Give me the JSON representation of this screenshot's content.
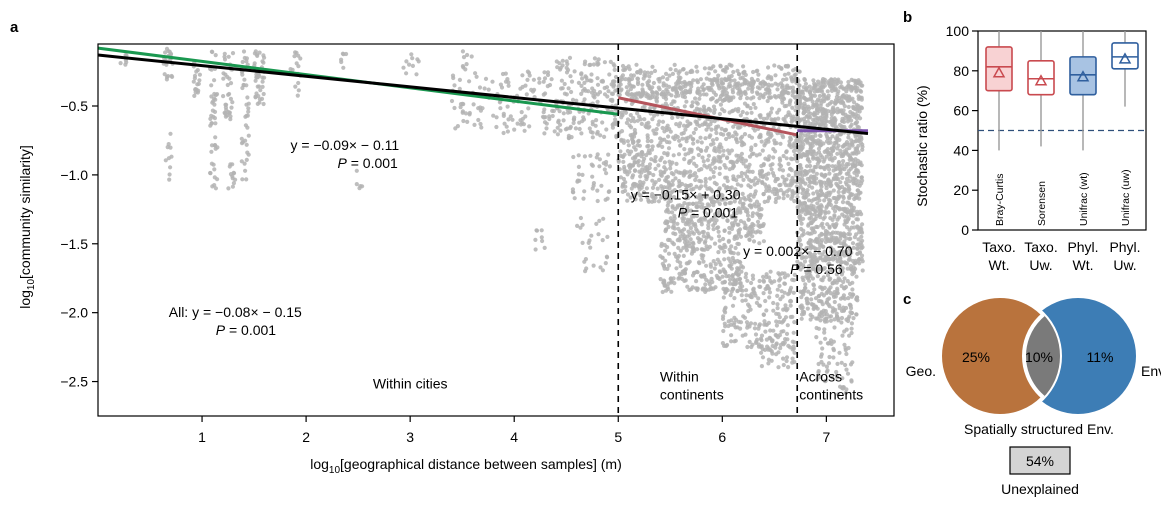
{
  "panels": {
    "a": "a",
    "b": "b",
    "c": "c"
  },
  "chart_data": [
    {
      "panel": "a",
      "type": "scatter",
      "xlabel": "log10[geographical distance between samples] (m)",
      "ylabel": "log10[community similarity]",
      "xlim": [
        0,
        7.65
      ],
      "ylim": [
        -2.75,
        -0.05
      ],
      "xticks": [
        1,
        2,
        3,
        4,
        5,
        6,
        7
      ],
      "yticks": [
        -0.5,
        -1.0,
        -1.5,
        -2.0,
        -2.5
      ],
      "ytick_labels": [
        "−0.5",
        "−1.0",
        "−1.5",
        "−2.0",
        "−2.5"
      ],
      "grid": false,
      "point_color": "#b3b3b3",
      "dividers": [
        5.0,
        6.72
      ],
      "regions": [
        {
          "text": "Within cities",
          "x": 3.0,
          "y": -2.55
        },
        {
          "text": "Within\ncontinents",
          "x": 5.4,
          "y": -2.5
        },
        {
          "text": "Across\ncontinents",
          "x": 6.74,
          "y": -2.5
        }
      ],
      "lines": [
        {
          "x": [
            0,
            5.0
          ],
          "y": [
            -0.08,
            -0.56
          ],
          "color": "#1a9850"
        },
        {
          "x": [
            5.0,
            6.72
          ],
          "y": [
            -0.44,
            -0.71
          ],
          "color": "#b5545c"
        },
        {
          "x": [
            6.72,
            7.4
          ],
          "y": [
            -0.68,
            -0.68
          ],
          "color": "#7b52ae"
        },
        {
          "x": [
            0,
            7.4
          ],
          "y": [
            -0.13,
            -0.7
          ],
          "color": "#000000"
        }
      ],
      "annotations": [
        {
          "lines": [
            "y = −0.09× − 0.11",
            "P = 0.001"
          ],
          "x": 1.85,
          "y": -0.82
        },
        {
          "lines": [
            "y = −0.15× + 0.30",
            "P = 0.001"
          ],
          "x": 5.12,
          "y": -1.18
        },
        {
          "lines": [
            "y = 0.002× − 0.70",
            "P = 0.56"
          ],
          "x": 6.2,
          "y": -1.59
        },
        {
          "lines": [
            "All: y = −0.08× − 0.15",
            "P = 0.001"
          ],
          "x": 0.68,
          "y": -2.03
        }
      ],
      "clusters": [
        {
          "x0": 0.2,
          "x1": 0.3,
          "y0": -0.1,
          "y1": -0.2,
          "n": 6
        },
        {
          "x0": 0.62,
          "x1": 0.72,
          "y0": -0.08,
          "y1": -0.32,
          "n": 25
        },
        {
          "x0": 0.65,
          "x1": 0.72,
          "y0": -0.7,
          "y1": -1.05,
          "n": 10
        },
        {
          "x0": 0.92,
          "x1": 0.98,
          "y0": -0.1,
          "y1": -0.45,
          "n": 18
        },
        {
          "x0": 1.07,
          "x1": 1.15,
          "y0": -0.1,
          "y1": -1.1,
          "n": 45
        },
        {
          "x0": 1.2,
          "x1": 1.3,
          "y0": -0.1,
          "y1": -0.6,
          "n": 35
        },
        {
          "x0": 1.25,
          "x1": 1.32,
          "y0": -0.9,
          "y1": -1.1,
          "n": 12
        },
        {
          "x0": 1.38,
          "x1": 1.45,
          "y0": -0.1,
          "y1": -1.05,
          "n": 40
        },
        {
          "x0": 1.5,
          "x1": 1.6,
          "y0": -0.1,
          "y1": -0.5,
          "n": 40
        },
        {
          "x0": 1.85,
          "x1": 1.95,
          "y0": -0.1,
          "y1": -0.45,
          "n": 15
        },
        {
          "x0": 2.3,
          "x1": 2.4,
          "y0": -0.12,
          "y1": -0.25,
          "n": 6
        },
        {
          "x0": 2.48,
          "x1": 2.58,
          "y0": -0.95,
          "y1": -1.1,
          "n": 5
        },
        {
          "x0": 2.9,
          "x1": 3.1,
          "y0": -0.12,
          "y1": -0.3,
          "n": 10
        },
        {
          "x0": 3.4,
          "x1": 4.4,
          "y0": -0.25,
          "y1": -0.7,
          "n": 130
        },
        {
          "x0": 3.5,
          "x1": 3.6,
          "y0": -0.1,
          "y1": -0.25,
          "n": 8
        },
        {
          "x0": 4.4,
          "x1": 5.0,
          "y0": -0.15,
          "y1": -0.75,
          "n": 180
        },
        {
          "x0": 4.55,
          "x1": 4.95,
          "y0": -0.85,
          "y1": -1.2,
          "n": 40
        },
        {
          "x0": 4.2,
          "x1": 4.3,
          "y0": -1.4,
          "y1": -1.55,
          "n": 8
        },
        {
          "x0": 4.6,
          "x1": 4.9,
          "y0": -1.3,
          "y1": -1.7,
          "n": 25
        },
        {
          "x0": 5.0,
          "x1": 6.75,
          "y0": -0.3,
          "y1": -1.2,
          "n": 1100
        },
        {
          "x0": 5.0,
          "x1": 6.75,
          "y0": -0.2,
          "y1": -0.45,
          "n": 250
        },
        {
          "x0": 5.45,
          "x1": 6.4,
          "y0": -1.2,
          "y1": -1.5,
          "n": 260
        },
        {
          "x0": 5.4,
          "x1": 6.2,
          "y0": -1.5,
          "y1": -1.85,
          "n": 200
        },
        {
          "x0": 6.0,
          "x1": 6.7,
          "y0": -1.7,
          "y1": -2.25,
          "n": 220
        },
        {
          "x0": 6.35,
          "x1": 6.7,
          "y0": -2.2,
          "y1": -2.4,
          "n": 40
        },
        {
          "x0": 6.72,
          "x1": 7.35,
          "y0": -0.3,
          "y1": -1.3,
          "n": 900
        },
        {
          "x0": 6.72,
          "x1": 7.35,
          "y0": -1.3,
          "y1": -1.7,
          "n": 300
        },
        {
          "x0": 6.75,
          "x1": 7.3,
          "y0": -1.7,
          "y1": -2.05,
          "n": 180
        },
        {
          "x0": 6.9,
          "x1": 7.25,
          "y0": -2.05,
          "y1": -2.5,
          "n": 70
        },
        {
          "x0": 7.1,
          "x1": 7.2,
          "y0": -2.5,
          "y1": -2.6,
          "n": 8
        }
      ]
    },
    {
      "panel": "b",
      "type": "box",
      "ylabel": "Stochastic ratio (%)",
      "ylim": [
        0,
        100
      ],
      "yticks": [
        0,
        20,
        40,
        60,
        80,
        100
      ],
      "hline": 50,
      "categories": [
        "Taxo.\nWt.",
        "Taxo.\nUw.",
        "Phyl.\nWt.",
        "Phyl.\nUw."
      ],
      "boxes": [
        {
          "label": "Bray-Curtis",
          "whisker_low": 40,
          "q1": 70,
          "median": 82,
          "q3": 92,
          "whisker_high": 100,
          "mean": 79,
          "color": "#c94a4f",
          "fill": "#f8d2d3"
        },
        {
          "label": "Sorensen",
          "whisker_low": 42,
          "q1": 68,
          "median": 76,
          "q3": 85,
          "whisker_high": 100,
          "mean": 75,
          "color": "#c94a4f",
          "fill": "#ffffff"
        },
        {
          "label": "Unifrac (wt)",
          "whisker_low": 40,
          "q1": 68,
          "median": 78,
          "q3": 87,
          "whisker_high": 100,
          "mean": 77,
          "color": "#2f5f9e",
          "fill": "#a8c3e3"
        },
        {
          "label": "Unifrac (uw)",
          "whisker_low": 62,
          "q1": 81,
          "median": 87,
          "q3": 94,
          "whisker_high": 100,
          "mean": 86,
          "color": "#2f5f9e",
          "fill": "#ffffff"
        }
      ]
    },
    {
      "panel": "c",
      "type": "venn",
      "sets": [
        {
          "name": "Geo.",
          "value": "25%",
          "color": "#b9733d"
        },
        {
          "name": "Env.",
          "value": "11%",
          "color": "#3d7db5"
        }
      ],
      "overlap": {
        "value": "10%",
        "color": "#7a7a7a"
      },
      "overlap_label": "Spatially structured Env.",
      "unexplained": {
        "value": "54%",
        "label": "Unexplained",
        "color": "#d4d4d4"
      }
    }
  ]
}
